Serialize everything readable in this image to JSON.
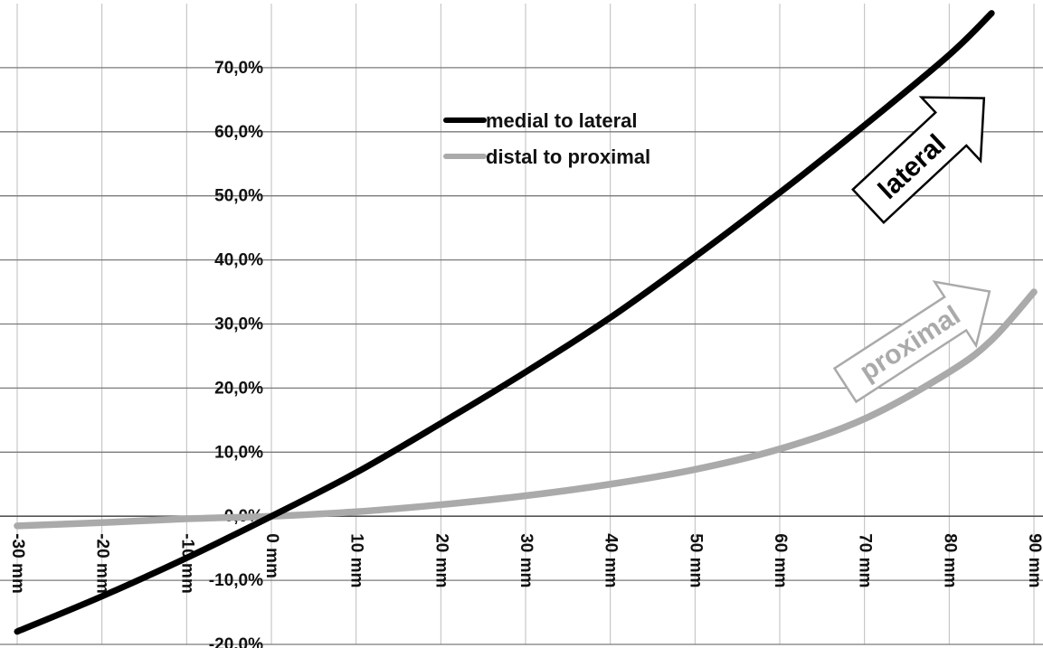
{
  "chart_data": {
    "type": "line",
    "title": "",
    "xlabel": "",
    "ylabel": "",
    "xlim": [
      -30,
      90
    ],
    "ylim": [
      -20,
      80
    ],
    "grid": true,
    "legend_position": "top-center",
    "x_ticks": [
      -30,
      -20,
      -10,
      0,
      10,
      20,
      30,
      40,
      50,
      60,
      70,
      80,
      90
    ],
    "x_tick_labels": [
      "-30 mm",
      "-20 mm",
      "-10 mm",
      "0 mm",
      "10 mm",
      "20 mm",
      "30 mm",
      "40 mm",
      "50 mm",
      "60 mm",
      "70 mm",
      "80 mm",
      "90 mm"
    ],
    "y_ticks": [
      -20,
      -10,
      0,
      10,
      20,
      30,
      40,
      50,
      60,
      70
    ],
    "y_tick_labels": [
      "-20,0%",
      "-10,0%",
      "0,0%",
      "10,0%",
      "20,0%",
      "30,0%",
      "40,0%",
      "50,0%",
      "60,0%",
      "70,0%"
    ],
    "series": [
      {
        "name": "medial to lateral",
        "color": "#000000",
        "x": [
          -30,
          -20,
          -10,
          0,
          10,
          20,
          30,
          40,
          50,
          60,
          70,
          80,
          85
        ],
        "y": [
          -18,
          -12.5,
          -6.5,
          0,
          6.8,
          14.5,
          22.5,
          31,
          40.5,
          50.5,
          61,
          72,
          78.5
        ]
      },
      {
        "name": "distal to proximal",
        "color": "#aaaaaa",
        "x": [
          -30,
          -20,
          -10,
          0,
          10,
          20,
          30,
          40,
          50,
          60,
          70,
          80,
          85,
          90
        ],
        "y": [
          -1.5,
          -1,
          -0.4,
          0,
          0.7,
          1.8,
          3.2,
          5,
          7.3,
          10.5,
          15.2,
          22.5,
          27.5,
          35
        ]
      }
    ],
    "annotations": [
      {
        "text": "lateral",
        "color": "#000000"
      },
      {
        "text": "proximal",
        "color": "#aaaaaa"
      }
    ]
  }
}
